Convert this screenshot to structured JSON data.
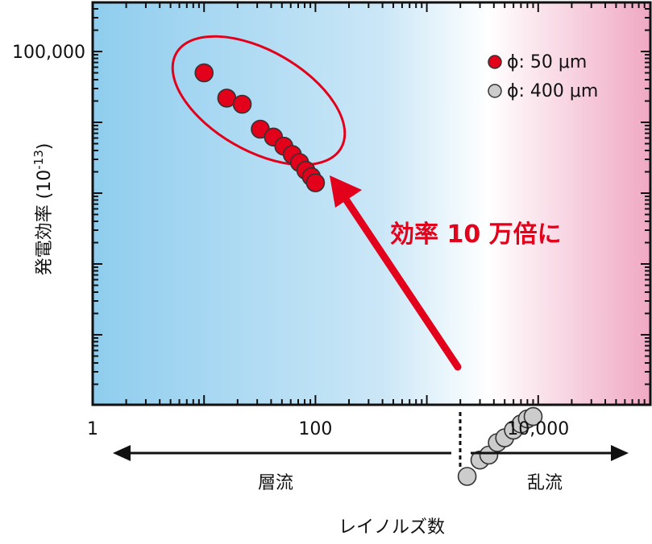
{
  "chart_data": {
    "type": "scatter",
    "title": "",
    "xlabel": "レイノルズ数",
    "ylabel": "発電効率 (10-13)",
    "ylabel_parts": {
      "text": "発電効率 (10",
      "sup": "-13",
      "close": ")"
    },
    "x_scale": "log",
    "y_scale": "log",
    "xlim": [
      1,
      100000
    ],
    "ylim": [
      0.063,
      160000
    ],
    "x_ticks": [
      {
        "value": 1,
        "label": "1"
      },
      {
        "value": 100,
        "label": "100"
      },
      {
        "value": 10000,
        "label": "10,000"
      }
    ],
    "y_ticks": [
      {
        "value": 100000,
        "label": "100,000"
      }
    ],
    "y_minor_decades": [
      10000,
      1000,
      100,
      10,
      1,
      0.1
    ],
    "legend": {
      "position": "top-right",
      "entries": [
        {
          "name": "ϕ: 50 μm",
          "color": "#e2001a"
        },
        {
          "name": "ϕ: 400 μm",
          "color": "#cccccc"
        }
      ]
    },
    "series": [
      {
        "name": "ϕ: 50 μm",
        "color": "#e2001a",
        "points": [
          [
            10,
            50000
          ],
          [
            16,
            22000
          ],
          [
            22,
            18000
          ],
          [
            32,
            8000
          ],
          [
            42,
            6200
          ],
          [
            52,
            4600
          ],
          [
            62,
            3500
          ],
          [
            72,
            2700
          ],
          [
            82,
            2100
          ],
          [
            92,
            1700
          ],
          [
            100,
            1400
          ]
        ]
      },
      {
        "name": "ϕ: 400 μm",
        "color": "#cccccc",
        "points": [
          [
            2300,
            0.1
          ],
          [
            3000,
            0.17
          ],
          [
            3600,
            0.2
          ],
          [
            4300,
            0.3
          ],
          [
            5000,
            0.35
          ],
          [
            6000,
            0.45
          ],
          [
            7000,
            0.55
          ],
          [
            8000,
            0.65
          ],
          [
            9000,
            0.7
          ]
        ]
      }
    ],
    "annotation": "効率 10 万倍に",
    "regime_divider_x": 3000,
    "regimes": {
      "left": "層流",
      "right": "乱流"
    }
  },
  "colors": {
    "laminar_bg": "#8fcdee",
    "turbulent_bg": "#f0a8c3",
    "accent": "#e2001a"
  }
}
